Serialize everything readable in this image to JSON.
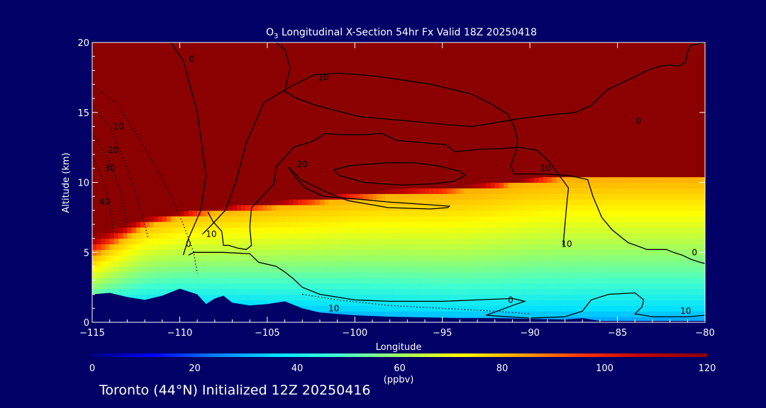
{
  "chart_data": {
    "type": "heatmap",
    "title": "O3 Longitudinal X-Section 54hr  Fx Valid 18Z 20250418",
    "title_parts": {
      "prefix": "O",
      "subscript": "3",
      "rest": " Longitudinal X-Section 54hr  Fx Valid 18Z 20250418"
    },
    "xlabel": "Longitude",
    "ylabel": "Altitude (km)",
    "xlim": [
      -115,
      -80
    ],
    "ylim": [
      0,
      20
    ],
    "x_ticks": [
      -115,
      -110,
      -105,
      -100,
      -95,
      -90,
      -85,
      -80
    ],
    "x_tick_labels": [
      "−115",
      "−110",
      "−105",
      "−100",
      "−95",
      "−90",
      "−85",
      "−80"
    ],
    "y_ticks": [
      0,
      5,
      10,
      15,
      20
    ],
    "y_tick_labels": [
      "0",
      "5",
      "10",
      "15",
      "20"
    ],
    "colorbar": {
      "range": [
        0,
        120
      ],
      "ticks": [
        0,
        20,
        40,
        60,
        80,
        100,
        120
      ],
      "tick_labels": [
        "0",
        "20",
        "40",
        "60",
        "80",
        "100",
        "120"
      ],
      "unit_label": "(ppbv)",
      "colors": [
        "#000080",
        "#0000ff",
        "#0080ff",
        "#00e0ff",
        "#40ffd0",
        "#a0ff60",
        "#ffff00",
        "#ffa000",
        "#ff3000",
        "#c00000",
        "#8b0000"
      ]
    },
    "background_color": "#8b0000",
    "ozone_transition": {
      "longitude": [
        -115,
        -112,
        -110,
        -108,
        -105,
        -102,
        -100,
        -98,
        -95,
        -92,
        -90,
        -88,
        -85,
        -82,
        -80
      ],
      "bottom_km": [
        4.5,
        6.8,
        7.5,
        7.8,
        8.1,
        8.5,
        8.8,
        9.0,
        9.2,
        9.6,
        10.0,
        10.2,
        10.3,
        10.3,
        10.3
      ],
      "top_km": [
        6.2,
        7.5,
        7.9,
        8.2,
        8.6,
        9.0,
        9.3,
        9.5,
        9.7,
        10.0,
        10.3,
        10.5,
        10.5,
        10.5,
        10.5
      ]
    },
    "terrain_km": {
      "longitude": [
        -115,
        -114,
        -113,
        -112,
        -111,
        -110,
        -109,
        -108.5,
        -108,
        -107.5,
        -107,
        -106,
        -105,
        -104,
        -103,
        -102,
        -100,
        -98,
        -96,
        -94,
        -92,
        -90,
        -88,
        -87,
        -86,
        -85,
        -84,
        -82,
        -80
      ],
      "altitude": [
        2.0,
        2.1,
        1.8,
        1.6,
        1.9,
        2.4,
        2.0,
        1.3,
        1.7,
        1.9,
        1.4,
        1.2,
        1.3,
        1.5,
        1.0,
        0.7,
        0.5,
        0.4,
        0.35,
        0.3,
        0.3,
        0.25,
        0.2,
        0.3,
        0.1,
        0.1,
        0.1,
        0.1,
        0.1
      ]
    },
    "contour_labels": [
      {
        "text": "10",
        "lon": -101.8,
        "alt": 17.5
      },
      {
        "text": "0",
        "lon": -109.3,
        "alt": 18.8
      },
      {
        "text": "0",
        "lon": -83.8,
        "alt": 14.4
      },
      {
        "text": "20",
        "lon": -103.0,
        "alt": 11.3
      },
      {
        "text": "10",
        "lon": -89.1,
        "alt": 11.0
      },
      {
        "text": "10",
        "lon": -87.9,
        "alt": 5.6
      },
      {
        "text": "10",
        "lon": -108.2,
        "alt": 6.3
      },
      {
        "text": "0",
        "lon": -109.5,
        "alt": 5.6
      },
      {
        "text": "0",
        "lon": -80.6,
        "alt": 5.0
      },
      {
        "text": "0",
        "lon": -91.1,
        "alt": 1.6
      },
      {
        "text": "10",
        "lon": -101.2,
        "alt": 1.0
      },
      {
        "text": "10",
        "lon": -81.1,
        "alt": 0.8
      },
      {
        "text": "10",
        "lon": -113.5,
        "alt": 14.0
      },
      {
        "text": "20",
        "lon": -113.8,
        "alt": 12.3
      },
      {
        "text": "30",
        "lon": -114.0,
        "alt": 11.0
      },
      {
        "text": "40",
        "lon": -114.3,
        "alt": 8.6
      }
    ],
    "contours": [
      {
        "style": "solid",
        "lon": [
          -110.5,
          -109.8,
          -109.0,
          -108.5,
          -108.8,
          -109.5,
          -109.8
        ],
        "alt": [
          20,
          18.7,
          15.0,
          10.5,
          8.0,
          6.0,
          4.8
        ]
      },
      {
        "style": "solid",
        "lon": [
          -109.5,
          -109.2,
          -107.5,
          -106.0,
          -105.5,
          -104.5,
          -104.0,
          -103.5,
          -103.0,
          -102.0,
          -100.0,
          -98.0,
          -95.0,
          -93.0,
          -91.0,
          -90.3,
          -91.0,
          -92.5,
          -90.0,
          -88.0,
          -87.0,
          -86.5,
          -85.5,
          -84.0,
          -83.5,
          -83.6,
          -84.0,
          -83.0,
          -81.0,
          -80.0
        ],
        "alt": [
          4.8,
          5.0,
          5.0,
          4.9,
          4.3,
          4.0,
          3.6,
          3.1,
          2.5,
          2.0,
          1.6,
          1.5,
          1.5,
          1.6,
          1.7,
          1.5,
          1.2,
          0.5,
          0.3,
          0.4,
          0.8,
          1.6,
          2.0,
          2.1,
          1.6,
          1.1,
          0.6,
          0.4,
          0.4,
          0.5
        ]
      },
      {
        "style": "solid",
        "lon": [
          -104.5,
          -104.0,
          -103.7,
          -104.0,
          -103.3,
          -102.2,
          -101.3,
          -99.7,
          -97.0,
          -94.5,
          -93.3,
          -92.3,
          -90.4,
          -89.0,
          -87.4,
          -86.5,
          -85.6,
          -84.1,
          -83.3,
          -82.6,
          -82.0,
          -81.5,
          -81.1,
          -81.0,
          -80.8,
          -80.0
        ],
        "alt": [
          20,
          19.5,
          18.2,
          16.5,
          16.0,
          15.5,
          15.2,
          14.7,
          14.4,
          14.1,
          14.0,
          14.2,
          14.6,
          14.8,
          15.0,
          15.5,
          16.6,
          17.5,
          18.0,
          18.3,
          18.4,
          18.3,
          18.6,
          19.3,
          19.8,
          20
        ]
      },
      {
        "style": "solid",
        "lon": [
          -108.7,
          -108.3,
          -107.4,
          -106.8,
          -106.2,
          -105.2,
          -103.6,
          -102.3,
          -100.8,
          -98.8,
          -95.6,
          -93.3,
          -92.2,
          -91.3,
          -90.9,
          -90.7,
          -90.8,
          -91.1,
          -90.9,
          -89.4,
          -87.8,
          -86.7,
          -86.4,
          -85.9,
          -85.3,
          -84.4,
          -83.3,
          -82.2,
          -81.8,
          -81.3,
          -80.8,
          -80.3,
          -80.0
        ],
        "alt": [
          6.3,
          6.8,
          8.0,
          10.0,
          12.8,
          15.7,
          16.9,
          17.7,
          17.8,
          17.6,
          17.0,
          16.3,
          15.6,
          14.9,
          14.0,
          13.0,
          12.2,
          11.2,
          10.6,
          10.6,
          10.5,
          10.2,
          9.0,
          7.5,
          6.6,
          5.7,
          5.2,
          5.2,
          5.0,
          4.8,
          4.5,
          4.3,
          4.2
        ]
      },
      {
        "style": "solid",
        "lon": [
          -108.4,
          -108.1,
          -107.6,
          -107.5,
          -107.2,
          -106.7,
          -106.2,
          -105.9,
          -106.0,
          -105.9,
          -104.6,
          -104.5,
          -103.5,
          -102.3,
          -101.7,
          -100.7,
          -99.6,
          -98.5,
          -98.1,
          -97.6,
          -94.8,
          -94.3,
          -92.5,
          -91.9,
          -90.6,
          -89.6,
          -88.9,
          -87.8,
          -87.9,
          -88.1
        ],
        "alt": [
          7.9,
          7.2,
          6.5,
          5.5,
          5.5,
          5.3,
          5.2,
          5.5,
          6.8,
          8.2,
          9.9,
          11.1,
          12.5,
          13.0,
          13.5,
          13.4,
          13.4,
          13.5,
          13.3,
          13.0,
          12.7,
          12.2,
          12.4,
          12.4,
          12.5,
          12.3,
          11.5,
          9.6,
          8.4,
          5.5
        ]
      },
      {
        "style": "solid",
        "lon": [
          -103.8,
          -103.3,
          -102.8,
          -101.8,
          -99.8,
          -98.1,
          -95.7,
          -94.6,
          -94.7,
          -95.7,
          -98.1,
          -100.4,
          -101.6,
          -103.1,
          -103.8
        ],
        "alt": [
          11.1,
          10.2,
          9.6,
          9.0,
          8.8,
          8.6,
          8.4,
          8.3,
          8.2,
          8.1,
          8.2,
          8.7,
          9.3,
          10.2,
          11.1
        ]
      },
      {
        "style": "solid",
        "lon": [
          -101.2,
          -100.3,
          -98.1,
          -96.7,
          -95.3,
          -94.0,
          -93.7,
          -94.3,
          -95.5,
          -97.3,
          -99.5,
          -100.9,
          -101.2
        ],
        "alt": [
          10.9,
          11.2,
          11.4,
          11.4,
          11.2,
          10.8,
          10.5,
          10.1,
          9.9,
          9.8,
          10.0,
          10.5,
          10.9
        ]
      },
      {
        "style": "dotted",
        "lon": [
          -115,
          -113.5,
          -112.0,
          -110.5,
          -109.8,
          -109.2,
          -109.0
        ],
        "alt": [
          17.0,
          15.5,
          12.5,
          9.0,
          7.0,
          5.0,
          3.5
        ]
      },
      {
        "style": "dotted",
        "lon": [
          -115,
          -114.0,
          -113.0,
          -112.2,
          -111.8
        ],
        "alt": [
          15.5,
          14.0,
          11.0,
          8.0,
          6.0
        ]
      },
      {
        "style": "dotted",
        "lon": [
          -115,
          -114.2,
          -113.4,
          -113.0
        ],
        "alt": [
          13.5,
          12.0,
          9.5,
          7.0
        ]
      },
      {
        "style": "dotted",
        "lon": [
          -115,
          -114.5,
          -114.0,
          -113.8
        ],
        "alt": [
          12.0,
          10.5,
          8.5,
          6.5
        ]
      },
      {
        "style": "dotted",
        "lon": [
          -103.0,
          -101.0,
          -98.0,
          -95.0,
          -92.0,
          -90.0
        ],
        "alt": [
          2.0,
          1.6,
          1.2,
          1.0,
          0.8,
          0.6
        ]
      }
    ]
  },
  "footer_text": "Toronto (44°N) Initialized 12Z 20250416"
}
